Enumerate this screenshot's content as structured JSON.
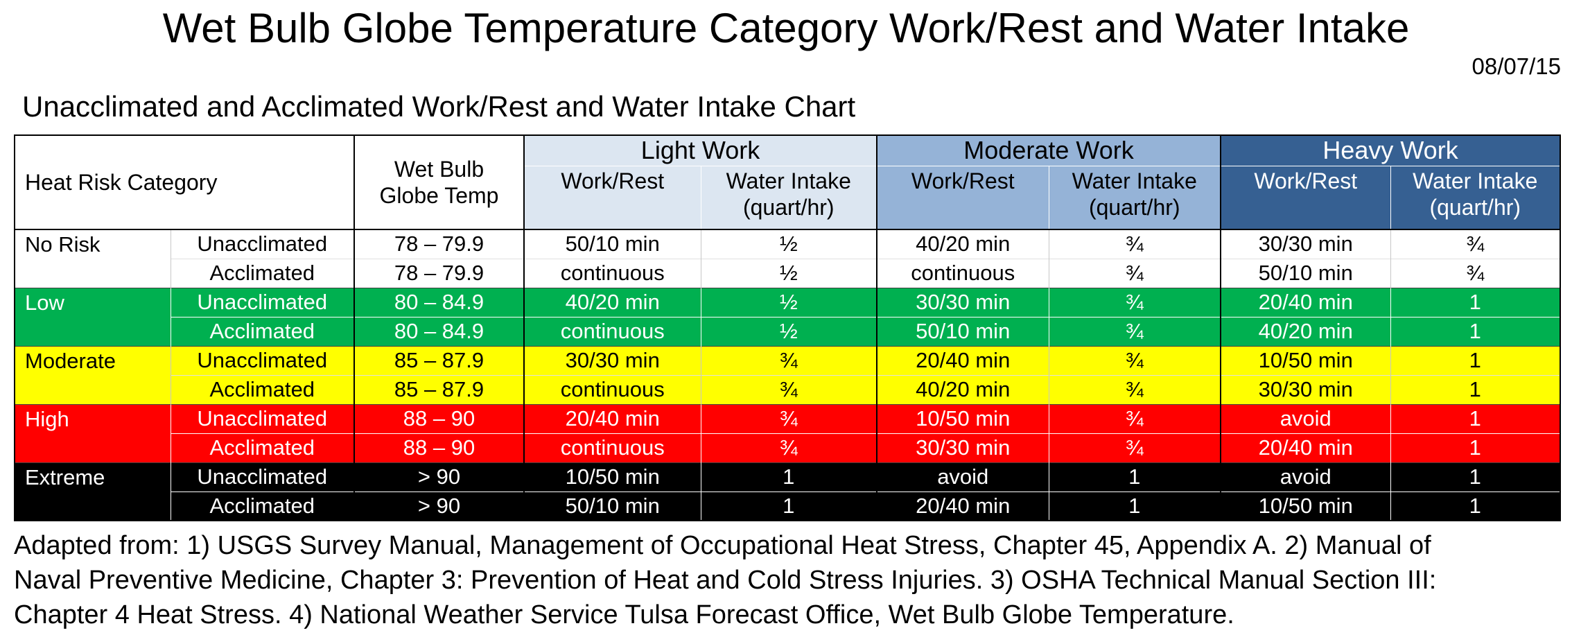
{
  "title": "Wet Bulb Globe Temperature Category Work/Rest and Water Intake",
  "date": "08/07/15",
  "subtitle": "Unacclimated and Acclimated Work/Rest and Water Intake Chart",
  "colors": {
    "light_work_header": "#dce6f1",
    "moderate_work_header": "#95b3d7",
    "heavy_work_header": "#366092",
    "heavy_work_header_text": "#ffffff",
    "low_row": "#00b050",
    "moderate_row": "#ffff00",
    "high_row": "#ff0000",
    "extreme_row": "#000000"
  },
  "table": {
    "headers": {
      "heat_risk_category": "Heat Risk Category",
      "wet_bulb_line1": "Wet Bulb",
      "wet_bulb_line2": "Globe Temp",
      "work_rest": "Work/Rest",
      "water_intake": "Water Intake",
      "water_intake_unit": "(quart/hr)",
      "sections": [
        {
          "label": "Light Work"
        },
        {
          "label": "Moderate Work"
        },
        {
          "label": "Heavy Work"
        }
      ]
    },
    "groups": [
      {
        "category": "No Risk",
        "bg": "#ffffff",
        "fg": "#000000",
        "theme": "light",
        "rows": [
          {
            "acclimation": "Unacclimated",
            "wbgt": "78 – 79.9",
            "light_work_rest": "50/10 min",
            "light_water": "½",
            "moderate_work_rest": "40/20 min",
            "moderate_water": "¾",
            "heavy_work_rest": "30/30 min",
            "heavy_water": "¾"
          },
          {
            "acclimation": "Acclimated",
            "wbgt": "78 – 79.9",
            "light_work_rest": "continuous",
            "light_water": "½",
            "moderate_work_rest": "continuous",
            "moderate_water": "¾",
            "heavy_work_rest": "50/10 min",
            "heavy_water": "¾"
          }
        ]
      },
      {
        "category": "Low",
        "bg": "#00b050",
        "fg": "#ffffff",
        "theme": "dark",
        "rows": [
          {
            "acclimation": "Unacclimated",
            "wbgt": "80 – 84.9",
            "light_work_rest": "40/20 min",
            "light_water": "½",
            "moderate_work_rest": "30/30 min",
            "moderate_water": "¾",
            "heavy_work_rest": "20/40 min",
            "heavy_water": "1"
          },
          {
            "acclimation": "Acclimated",
            "wbgt": "80 – 84.9",
            "light_work_rest": "continuous",
            "light_water": "½",
            "moderate_work_rest": "50/10 min",
            "moderate_water": "¾",
            "heavy_work_rest": "40/20 min",
            "heavy_water": "1"
          }
        ]
      },
      {
        "category": "Moderate",
        "bg": "#ffff00",
        "fg": "#000000",
        "theme": "light",
        "rows": [
          {
            "acclimation": "Unacclimated",
            "wbgt": "85 – 87.9",
            "light_work_rest": "30/30 min",
            "light_water": "¾",
            "moderate_work_rest": "20/40 min",
            "moderate_water": "¾",
            "heavy_work_rest": "10/50 min",
            "heavy_water": "1"
          },
          {
            "acclimation": "Acclimated",
            "wbgt": "85 – 87.9",
            "light_work_rest": "continuous",
            "light_water": "¾",
            "moderate_work_rest": "40/20 min",
            "moderate_water": "¾",
            "heavy_work_rest": "30/30 min",
            "heavy_water": "1"
          }
        ]
      },
      {
        "category": "High",
        "bg": "#ff0000",
        "fg": "#ffffff",
        "theme": "dark",
        "rows": [
          {
            "acclimation": "Unacclimated",
            "wbgt": "88 – 90",
            "light_work_rest": "20/40 min",
            "light_water": "¾",
            "moderate_work_rest": "10/50 min",
            "moderate_water": "¾",
            "heavy_work_rest": "avoid",
            "heavy_water": "1"
          },
          {
            "acclimation": "Acclimated",
            "wbgt": "88 – 90",
            "light_work_rest": "continuous",
            "light_water": "¾",
            "moderate_work_rest": "30/30 min",
            "moderate_water": "¾",
            "heavy_work_rest": "20/40 min",
            "heavy_water": "1"
          }
        ]
      },
      {
        "category": "Extreme",
        "bg": "#000000",
        "fg": "#ffffff",
        "theme": "dark",
        "rows": [
          {
            "acclimation": "Unacclimated",
            "wbgt": "> 90",
            "light_work_rest": "10/50 min",
            "light_water": "1",
            "moderate_work_rest": "avoid",
            "moderate_water": "1",
            "heavy_work_rest": "avoid",
            "heavy_water": "1"
          },
          {
            "acclimation": "Acclimated",
            "wbgt": "> 90",
            "light_work_rest": "50/10 min",
            "light_water": "1",
            "moderate_work_rest": "20/40 min",
            "moderate_water": "1",
            "heavy_work_rest": "10/50 min",
            "heavy_water": "1"
          }
        ]
      }
    ]
  },
  "footer": {
    "lines": [
      "Adapted from: 1) USGS Survey Manual, Management of Occupational Heat Stress, Chapter 45, Appendix A. 2) Manual of",
      "Naval Preventive Medicine, Chapter 3: Prevention of Heat and Cold Stress Injuries. 3) OSHA Technical Manual Section III:",
      "Chapter 4 Heat Stress. 4) National Weather Service Tulsa Forecast Office, Wet Bulb Globe Temperature."
    ]
  }
}
